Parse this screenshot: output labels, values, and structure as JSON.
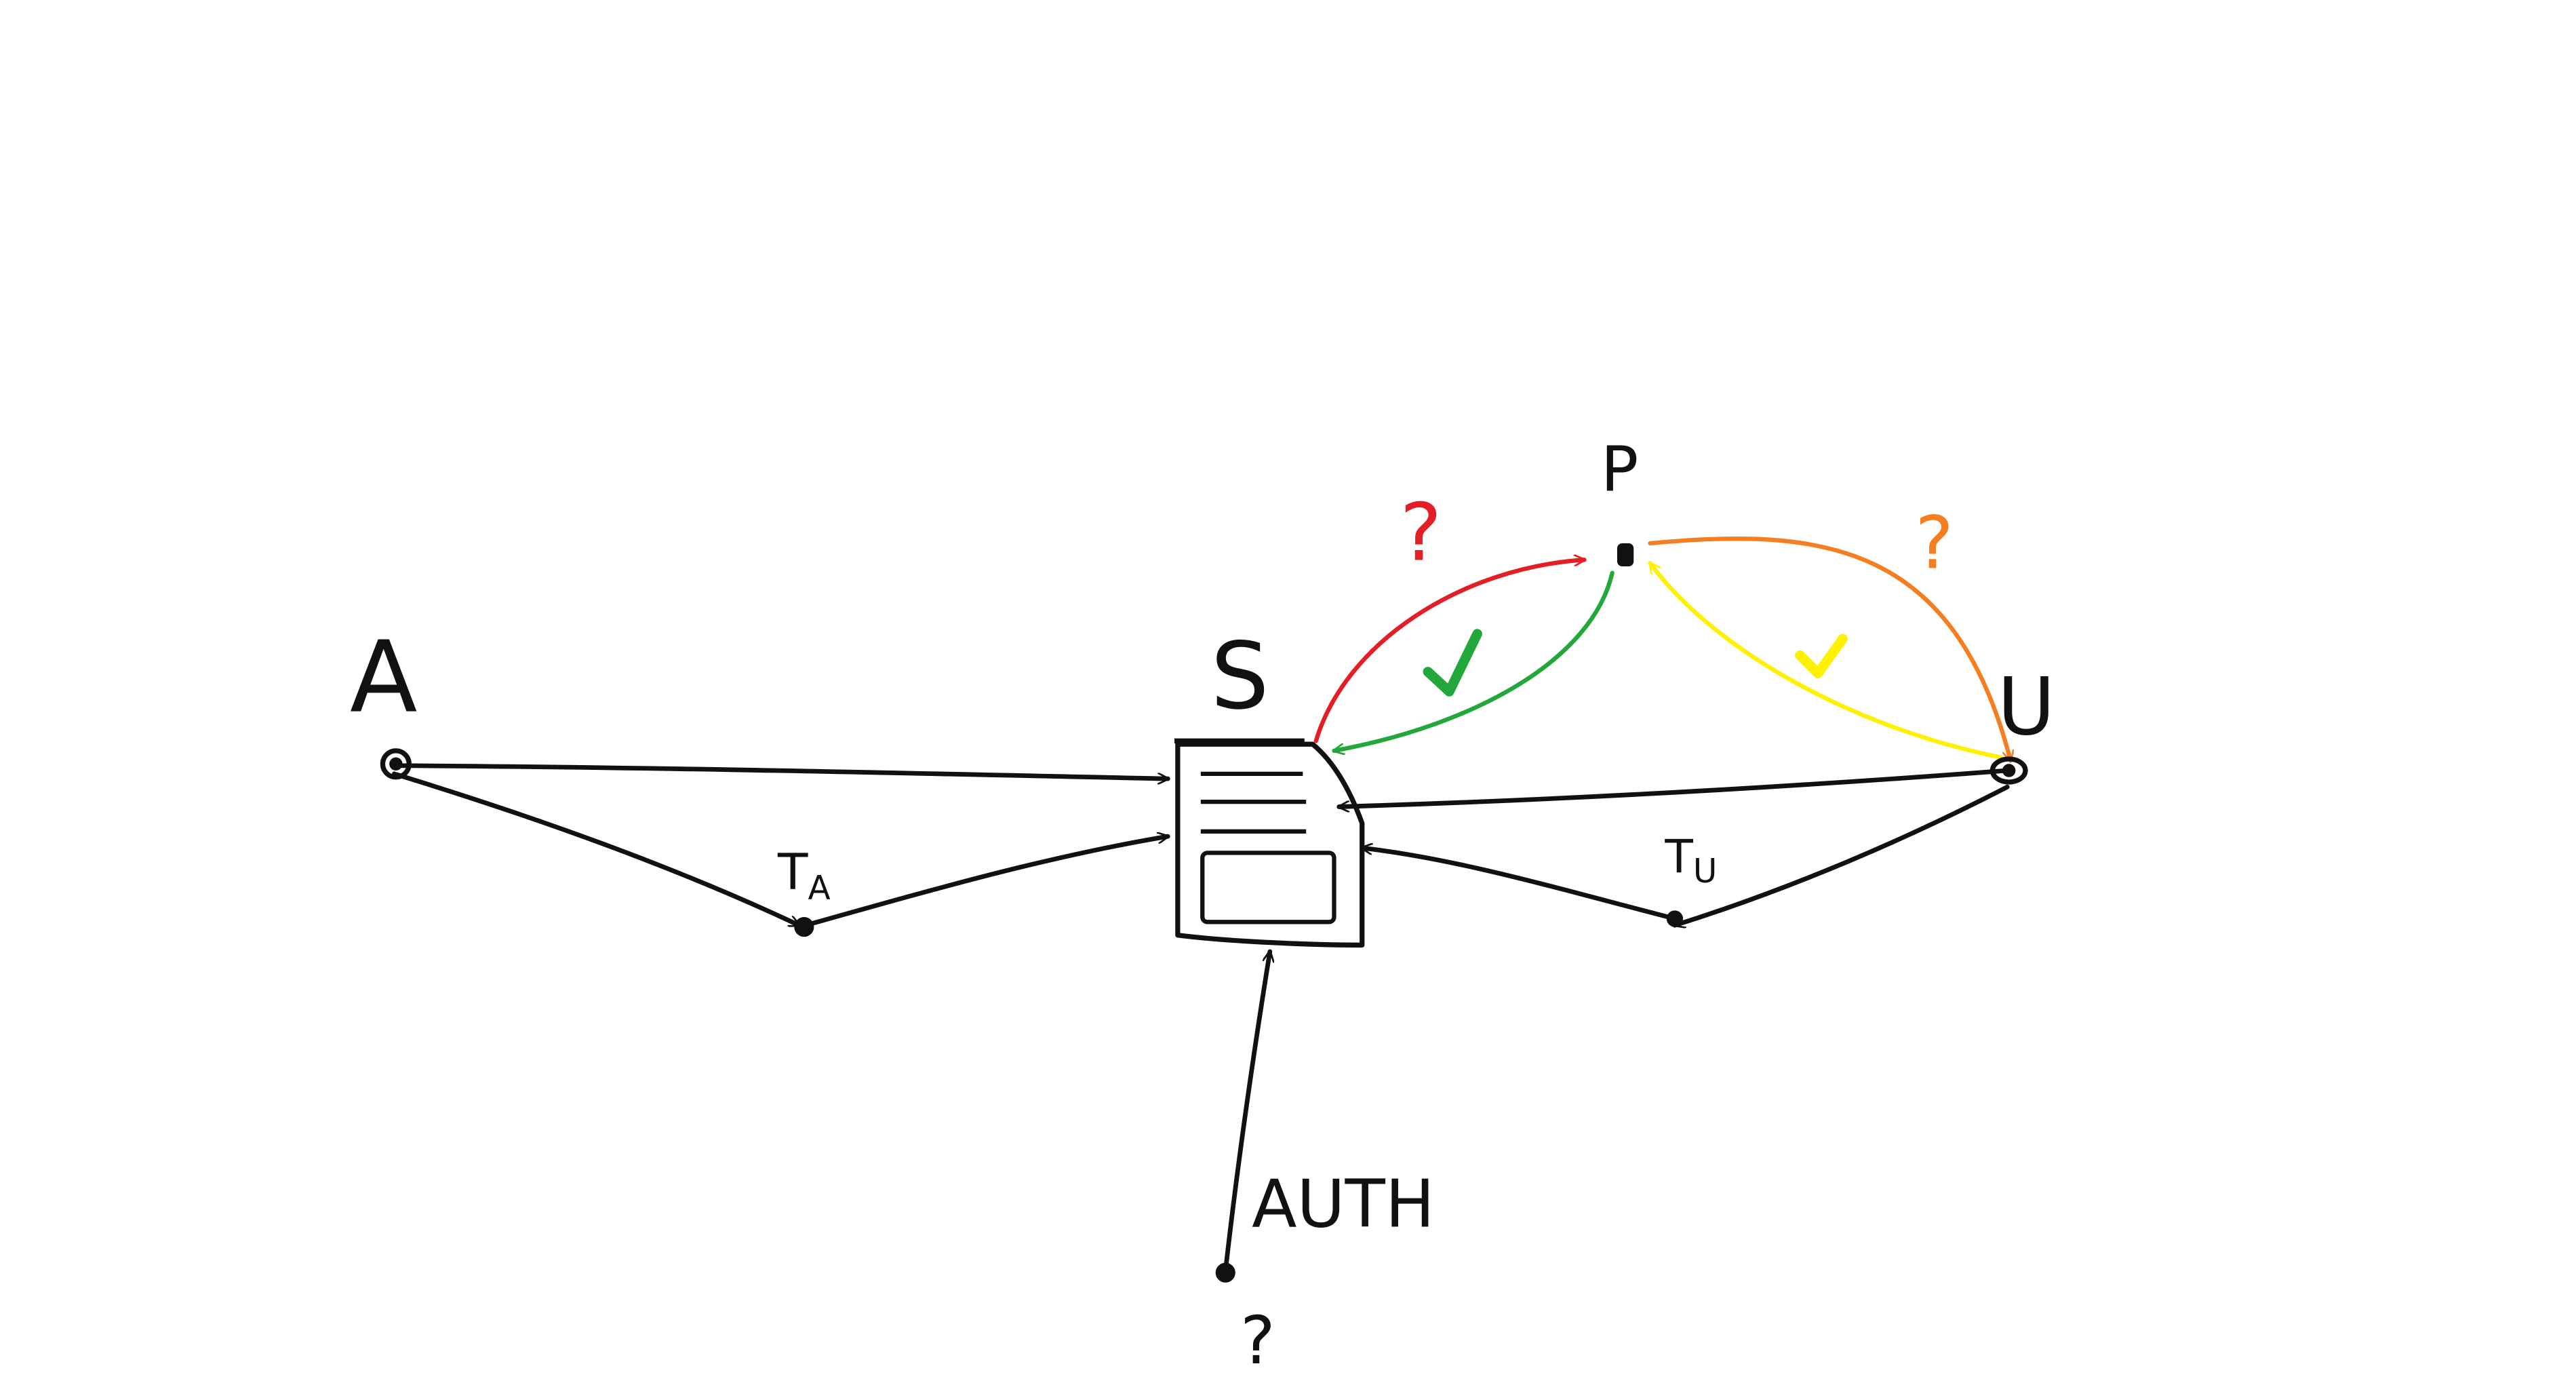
{
  "colors": {
    "ink": "#111111",
    "red": "#e31e24",
    "green": "#22a83a",
    "orange": "#f57f20",
    "yellow": "#fff200"
  },
  "nodes": {
    "a": {
      "label": "A"
    },
    "s": {
      "label": "S"
    },
    "p": {
      "label": "P"
    },
    "u": {
      "label": "U"
    },
    "ta": {
      "label": "T",
      "sub": "A"
    },
    "tu": {
      "label": "T",
      "sub": "U"
    },
    "auth_source": {
      "label": "?"
    }
  },
  "edges": {
    "auth": {
      "label": "AUTH"
    },
    "s_to_p": {
      "mark": "?"
    },
    "p_to_u": {
      "mark": "?"
    },
    "p_to_s": {
      "mark": "check-icon"
    },
    "u_to_p": {
      "mark": "check-icon"
    }
  }
}
